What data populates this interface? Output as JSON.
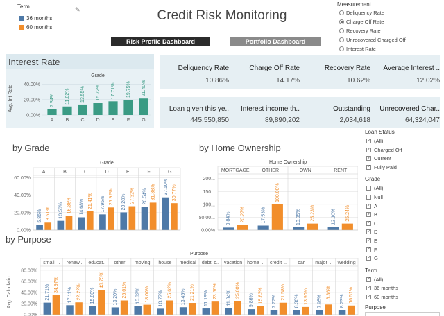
{
  "legend": {
    "title": "Term",
    "items": [
      {
        "label": "36 months",
        "color": "#4e79a7"
      },
      {
        "label": "60 months",
        "color": "#f28e2b"
      }
    ]
  },
  "header": {
    "title": "Credit Risk Monitoring",
    "btn_risk": "Risk Profile Dashboard",
    "btn_portfolio": "Portfolio Dashboard"
  },
  "measurement": {
    "title": "Measurement",
    "options": [
      {
        "label": "Deliquency Rate",
        "selected": false
      },
      {
        "label": "Charge Off Rate",
        "selected": true
      },
      {
        "label": "Recovery Rate",
        "selected": false
      },
      {
        "label": "Unrecovered Charged Off",
        "selected": false
      },
      {
        "label": "Interest Rate",
        "selected": false
      }
    ]
  },
  "kpi_row1": [
    {
      "label": "Deliquency Rate",
      "value": "10.86%"
    },
    {
      "label": "Charge Off Rate",
      "value": "14.17%"
    },
    {
      "label": "Recovery Rate",
      "value": "10.62%"
    },
    {
      "label": "Average Interest ..",
      "value": "12.02%"
    }
  ],
  "kpi_row2": [
    {
      "label": "Loan given this ye..",
      "value": "445,550,850"
    },
    {
      "label": "Interest income th..",
      "value": "89,890,202"
    },
    {
      "label": "Outstanding",
      "value": "2,034,618"
    },
    {
      "label": "Unrecovered Char..",
      "value": "64,324,047"
    }
  ],
  "interest_panel": {
    "title": "Interest Rate",
    "grade_label": "Grade",
    "ylabel": "Avg. Int Rate"
  },
  "by_grade": {
    "title": "by Grade",
    "grade_label": "Grade"
  },
  "by_home": {
    "title": "by Home Ownership",
    "header": "Home Ownership"
  },
  "by_purpose": {
    "title": "by Purpose",
    "header": "Purpose",
    "ylabel": "Avg. Calculatio.."
  },
  "filters": {
    "loan_status": {
      "title": "Loan Status",
      "items": [
        {
          "label": "(All)",
          "checked": true
        },
        {
          "label": "Charged Off",
          "checked": true
        },
        {
          "label": "Current",
          "checked": true
        },
        {
          "label": "Fully Paid",
          "checked": true
        }
      ]
    },
    "grade": {
      "title": "Grade",
      "items": [
        {
          "label": "(All)",
          "checked": false
        },
        {
          "label": "Null",
          "checked": false
        },
        {
          "label": "A",
          "checked": true
        },
        {
          "label": "B",
          "checked": true
        },
        {
          "label": "C",
          "checked": true
        },
        {
          "label": "D",
          "checked": true
        },
        {
          "label": "E",
          "checked": true
        },
        {
          "label": "F",
          "checked": true
        },
        {
          "label": "G",
          "checked": true
        }
      ]
    },
    "term": {
      "title": "Term",
      "items": [
        {
          "label": "(All)",
          "checked": true
        },
        {
          "label": "36 months",
          "checked": true
        },
        {
          "label": "60 months",
          "checked": true
        }
      ]
    },
    "purpose_title": "Purpose"
  },
  "chart_data": [
    {
      "type": "bar",
      "title": "Interest Rate",
      "xlabel": "Grade",
      "ylabel": "Avg. Int Rate",
      "categories": [
        "A",
        "B",
        "C",
        "D",
        "E",
        "F",
        "G"
      ],
      "values": [
        7.34,
        11.02,
        13.55,
        15.72,
        17.71,
        19.75,
        21.4
      ],
      "labels": [
        "7.34%",
        "11.02%",
        "13.55%",
        "15.72%",
        "17.71%",
        "19.75%",
        "21.40%"
      ],
      "ylim": [
        0,
        45
      ],
      "yticks": [
        "40.00%",
        "20.00%",
        "0.00%"
      ],
      "color": "#3a9b84"
    },
    {
      "type": "bar",
      "title": "by Grade",
      "xlabel": "Grade",
      "categories": [
        "A",
        "B",
        "C",
        "D",
        "E",
        "F",
        "G"
      ],
      "series": [
        {
          "name": "36 months",
          "values": [
            5.86,
            10.56,
            14.68,
            17.95,
            20.28,
            26.54,
            37.5
          ],
          "labels": [
            "5.86%",
            "10.56%",
            "14.68%",
            "17.95%",
            "20.28%",
            "26.54%",
            "37.50%"
          ]
        },
        {
          "name": "60 months",
          "values": [
            8.51,
            16.36,
            21.41,
            25.92,
            27.32,
            31.38,
            30.77
          ],
          "labels": [
            "8.51%",
            "16.36%",
            "21.41%",
            "25.92%",
            "27.32%",
            "31.38%",
            "30.77%"
          ]
        }
      ],
      "ylim": [
        0,
        65
      ],
      "yticks": [
        "60.00%",
        "40.00%",
        "20.00%",
        "0.00%"
      ]
    },
    {
      "type": "bar",
      "title": "by Home Ownership",
      "xlabel": "Home Ownership",
      "categories": [
        "MORTGAGE",
        "OTHER",
        "OWN",
        "RENT"
      ],
      "series": [
        {
          "name": "36 months",
          "values": [
            9.84,
            17.53,
            10.95,
            12.1
          ],
          "labels": [
            "9.84%",
            "17.53%",
            "10.95%",
            "12.10%"
          ]
        },
        {
          "name": "60 months",
          "values": [
            20.27,
            100.0,
            25.23,
            25.24
          ],
          "labels": [
            "20.27%",
            "100.00%",
            "25.23%",
            "25.24%"
          ]
        }
      ],
      "ylim": [
        0,
        210
      ],
      "yticks": [
        "200...",
        "150...",
        "100...",
        "50.00...",
        "0.00%"
      ]
    },
    {
      "type": "bar",
      "title": "by Purpose",
      "xlabel": "Purpose",
      "ylabel": "Avg. Calculatio..",
      "categories": [
        "small_..",
        "renew..",
        "educat..",
        "other",
        "moving",
        "house",
        "medical",
        "debt_c..",
        "vacation",
        "home_..",
        "credit_..",
        "car",
        "major_..",
        "wedding"
      ],
      "series": [
        {
          "name": "36 months",
          "values": [
            21.71,
            17.11,
            15.8,
            13.2,
            15.32,
            10.77,
            13.45,
            11.19,
            11.84,
            9.86,
            7.77,
            8.3,
            7.95,
            8.23
          ],
          "labels": [
            "21.71%",
            "17.11%",
            "15.80%",
            "13.20%",
            "15.32%",
            "10.77%",
            "13.45%",
            "11.19%",
            "11.84%",
            "9.86%",
            "7.77%",
            "8.30%",
            "7.95%",
            "8.23%"
          ]
        },
        {
          "name": "60 months",
          "values": [
            34.97,
            22.22,
            43.75,
            25.61,
            18.0,
            25.62,
            21.21,
            23.56,
            25.0,
            15.83,
            21.58,
            13.9,
            18.36,
            16.51
          ],
          "labels": [
            "34.97%",
            "22.22%",
            "43.75%",
            "25.61%",
            "18.00%",
            "25.62%",
            "21.21%",
            "23.56%",
            "25.00%",
            "15.83%",
            "21.58%",
            "13.90%",
            "18.36%",
            "16.51%"
          ]
        }
      ],
      "ylim": [
        0,
        85
      ],
      "yticks": [
        "80.00%",
        "60.00%",
        "40.00%",
        "20.00%",
        "0.00%"
      ]
    }
  ]
}
